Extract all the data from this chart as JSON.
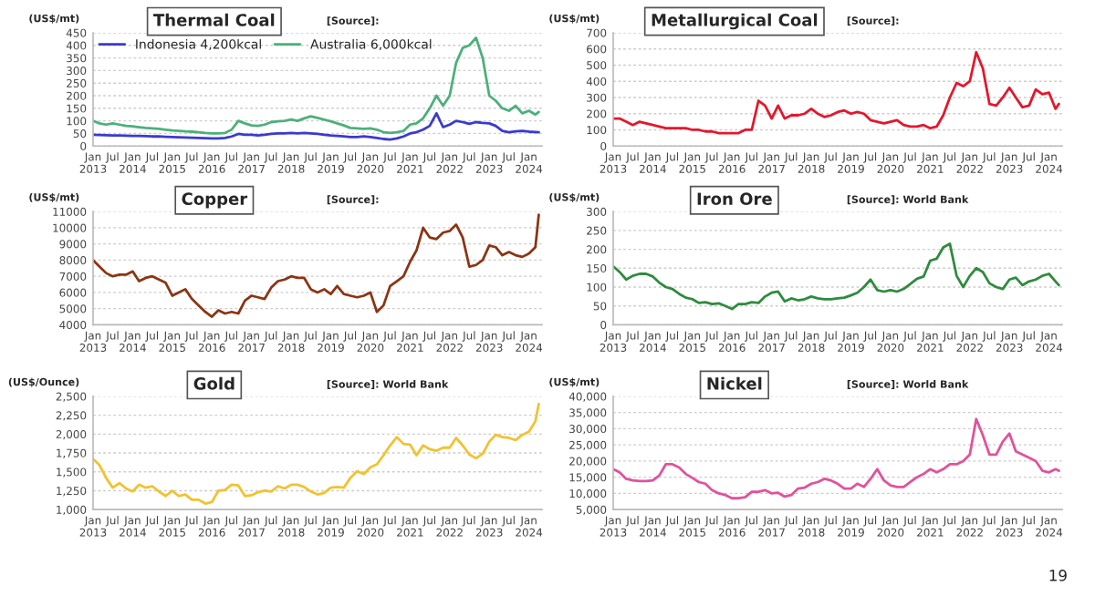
{
  "chart_data": [
    {
      "type": "line",
      "title": "Thermal Coal",
      "ylabel": "(US$/mt)",
      "annotations": [
        "[Source]:"
      ],
      "legend": "top left",
      "grid": "y",
      "line_style": "solid",
      "marker": "none",
      "x": [
        "2013-01",
        "2013-03",
        "2013-05",
        "2013-07",
        "2013-09",
        "2013-11",
        "2014-01",
        "2014-03",
        "2014-05",
        "2014-07",
        "2014-09",
        "2014-11",
        "2015-01",
        "2015-03",
        "2015-05",
        "2015-07",
        "2015-09",
        "2015-11",
        "2016-01",
        "2016-03",
        "2016-05",
        "2016-07",
        "2016-09",
        "2016-11",
        "2017-01",
        "2017-03",
        "2017-05",
        "2017-07",
        "2017-09",
        "2017-11",
        "2018-01",
        "2018-03",
        "2018-05",
        "2018-07",
        "2018-09",
        "2018-11",
        "2019-01",
        "2019-03",
        "2019-05",
        "2019-07",
        "2019-09",
        "2019-11",
        "2020-01",
        "2020-03",
        "2020-05",
        "2020-07",
        "2020-09",
        "2020-11",
        "2021-01",
        "2021-03",
        "2021-05",
        "2021-07",
        "2021-09",
        "2021-11",
        "2022-01",
        "2022-03",
        "2022-05",
        "2022-07",
        "2022-09",
        "2022-11",
        "2023-01",
        "2023-03",
        "2023-05",
        "2023-07",
        "2023-09",
        "2023-11",
        "2024-01",
        "2024-03",
        "2024-04"
      ],
      "series": [
        {
          "name": "Indonesia 4,200kcal",
          "color": "#3a3ad0",
          "values": [
            45,
            44,
            43,
            42,
            42,
            41,
            40,
            40,
            39,
            38,
            38,
            37,
            36,
            35,
            34,
            33,
            32,
            31,
            30,
            30,
            32,
            38,
            48,
            45,
            45,
            42,
            45,
            48,
            50,
            50,
            52,
            50,
            52,
            50,
            48,
            45,
            42,
            40,
            38,
            36,
            36,
            38,
            36,
            32,
            28,
            26,
            30,
            38,
            50,
            55,
            65,
            80,
            130,
            75,
            85,
            100,
            95,
            88,
            95,
            92,
            90,
            80,
            60,
            55,
            58,
            60,
            57,
            56,
            55
          ]
        },
        {
          "name": "Australia 6,000kcal",
          "color": "#4cb07a",
          "values": [
            100,
            90,
            85,
            90,
            85,
            80,
            78,
            75,
            72,
            70,
            68,
            65,
            62,
            60,
            58,
            57,
            55,
            52,
            50,
            50,
            52,
            65,
            100,
            90,
            82,
            80,
            85,
            95,
            98,
            100,
            105,
            100,
            110,
            118,
            112,
            105,
            98,
            90,
            82,
            72,
            70,
            68,
            70,
            65,
            55,
            52,
            55,
            60,
            85,
            90,
            110,
            150,
            200,
            160,
            200,
            330,
            390,
            400,
            430,
            350,
            200,
            180,
            150,
            140,
            160,
            130,
            140,
            125,
            135
          ]
        }
      ],
      "xlim": [
        "2013-01",
        "2024-05"
      ],
      "ylim": [
        0,
        450
      ],
      "yticks": [
        0,
        50,
        100,
        150,
        200,
        250,
        300,
        350,
        400,
        450
      ],
      "xticks": [
        {
          "value": "2013-01",
          "label": "Jan\n2013"
        },
        {
          "value": "2013-07",
          "label": "Jul"
        },
        {
          "value": "2014-01",
          "label": "Jan\n2014"
        },
        {
          "value": "2014-07",
          "label": "Jul"
        },
        {
          "value": "2015-01",
          "label": "Jan\n2015"
        },
        {
          "value": "2015-07",
          "label": "Jul"
        },
        {
          "value": "2016-01",
          "label": "Jan\n2016"
        },
        {
          "value": "2016-07",
          "label": "Jul"
        },
        {
          "value": "2017-01",
          "label": "Jan\n2017"
        },
        {
          "value": "2017-07",
          "label": "Jul"
        },
        {
          "value": "2018-01",
          "label": "Jan\n2018"
        },
        {
          "value": "2018-07",
          "label": "Jul"
        },
        {
          "value": "2019-01",
          "label": "Jan\n2019"
        },
        {
          "value": "2019-07",
          "label": "Jul"
        },
        {
          "value": "2020-01",
          "label": "Jan\n2020"
        },
        {
          "value": "2020-07",
          "label": "Jul"
        },
        {
          "value": "2021-01",
          "label": "Jan\n2021"
        },
        {
          "value": "2021-07",
          "label": "Jul"
        },
        {
          "value": "2022-01",
          "label": "Jan\n2022"
        },
        {
          "value": "2022-07",
          "label": "Jul"
        },
        {
          "value": "2023-01",
          "label": "Jan\n2023"
        },
        {
          "value": "2023-07",
          "label": "Jul"
        },
        {
          "value": "2024-01",
          "label": "Jan\n2024"
        }
      ]
    },
    {
      "type": "line",
      "title": "Metallurgical Coal",
      "ylabel": "(US$/mt)",
      "annotations": [
        "[Source]:"
      ],
      "grid": "y",
      "line_style": "solid",
      "marker": "none",
      "x": [
        "2013-01",
        "2013-03",
        "2013-05",
        "2013-07",
        "2013-09",
        "2013-11",
        "2014-01",
        "2014-03",
        "2014-05",
        "2014-07",
        "2014-09",
        "2014-11",
        "2015-01",
        "2015-03",
        "2015-05",
        "2015-07",
        "2015-09",
        "2015-11",
        "2016-01",
        "2016-03",
        "2016-05",
        "2016-07",
        "2016-09",
        "2016-11",
        "2017-01",
        "2017-03",
        "2017-05",
        "2017-07",
        "2017-09",
        "2017-11",
        "2018-01",
        "2018-03",
        "2018-05",
        "2018-07",
        "2018-09",
        "2018-11",
        "2019-01",
        "2019-03",
        "2019-05",
        "2019-07",
        "2019-09",
        "2019-11",
        "2020-01",
        "2020-03",
        "2020-05",
        "2020-07",
        "2020-09",
        "2020-11",
        "2021-01",
        "2021-03",
        "2021-05",
        "2021-07",
        "2021-09",
        "2021-11",
        "2022-01",
        "2022-03",
        "2022-05",
        "2022-07",
        "2022-09",
        "2022-11",
        "2023-01",
        "2023-03",
        "2023-05",
        "2023-07",
        "2023-09",
        "2023-11",
        "2024-01",
        "2024-03",
        "2024-04"
      ],
      "series": [
        {
          "color": "#e3172d",
          "values": [
            170,
            170,
            150,
            130,
            150,
            140,
            130,
            120,
            110,
            110,
            110,
            110,
            100,
            100,
            90,
            90,
            80,
            80,
            80,
            80,
            100,
            100,
            280,
            250,
            170,
            250,
            170,
            190,
            190,
            200,
            230,
            200,
            180,
            190,
            210,
            220,
            200,
            210,
            200,
            160,
            150,
            140,
            150,
            160,
            130,
            120,
            120,
            130,
            110,
            120,
            190,
            300,
            390,
            370,
            400,
            580,
            480,
            260,
            250,
            300,
            360,
            300,
            240,
            250,
            350,
            320,
            330,
            230,
            260
          ]
        }
      ],
      "xlim": [
        "2013-01",
        "2024-05"
      ],
      "ylim": [
        0,
        700
      ],
      "yticks": [
        0,
        100,
        200,
        300,
        400,
        500,
        600,
        700
      ],
      "xticks": [
        {
          "value": "2013-01",
          "label": "Jan\n2013"
        },
        {
          "value": "2013-07",
          "label": "Jul"
        },
        {
          "value": "2014-01",
          "label": "Jan\n2014"
        },
        {
          "value": "2014-07",
          "label": "Jul"
        },
        {
          "value": "2015-01",
          "label": "Jan\n2015"
        },
        {
          "value": "2015-07",
          "label": "Jul"
        },
        {
          "value": "2016-01",
          "label": "Jan\n2016"
        },
        {
          "value": "2016-07",
          "label": "Jul"
        },
        {
          "value": "2017-01",
          "label": "Jan\n2017"
        },
        {
          "value": "2017-07",
          "label": "Jul"
        },
        {
          "value": "2018-01",
          "label": "Jan\n2018"
        },
        {
          "value": "2018-07",
          "label": "Jul"
        },
        {
          "value": "2019-01",
          "label": "Jan\n2019"
        },
        {
          "value": "2019-07",
          "label": "Jul"
        },
        {
          "value": "2020-01",
          "label": "Jan\n2020"
        },
        {
          "value": "2020-07",
          "label": "Jul"
        },
        {
          "value": "2021-01",
          "label": "Jan\n2021"
        },
        {
          "value": "2021-07",
          "label": "Jul"
        },
        {
          "value": "2022-01",
          "label": "Jan\n2022"
        },
        {
          "value": "2022-07",
          "label": "Jul"
        },
        {
          "value": "2023-01",
          "label": "Jan\n2023"
        },
        {
          "value": "2023-07",
          "label": "Jul"
        },
        {
          "value": "2024-01",
          "label": "Jan\n2024"
        }
      ]
    },
    {
      "type": "line",
      "title": "Copper",
      "ylabel": "(US$/mt)",
      "annotations": [
        "[Source]:"
      ],
      "grid": "y",
      "line_style": "solid",
      "marker": "none",
      "x": [
        "2013-01",
        "2013-03",
        "2013-05",
        "2013-07",
        "2013-09",
        "2013-11",
        "2014-01",
        "2014-03",
        "2014-05",
        "2014-07",
        "2014-09",
        "2014-11",
        "2015-01",
        "2015-03",
        "2015-05",
        "2015-07",
        "2015-09",
        "2015-11",
        "2016-01",
        "2016-03",
        "2016-05",
        "2016-07",
        "2016-09",
        "2016-11",
        "2017-01",
        "2017-03",
        "2017-05",
        "2017-07",
        "2017-09",
        "2017-11",
        "2018-01",
        "2018-03",
        "2018-05",
        "2018-07",
        "2018-09",
        "2018-11",
        "2019-01",
        "2019-03",
        "2019-05",
        "2019-07",
        "2019-09",
        "2019-11",
        "2020-01",
        "2020-03",
        "2020-05",
        "2020-07",
        "2020-09",
        "2020-11",
        "2021-01",
        "2021-03",
        "2021-05",
        "2021-07",
        "2021-09",
        "2021-11",
        "2022-01",
        "2022-03",
        "2022-05",
        "2022-07",
        "2022-09",
        "2022-11",
        "2023-01",
        "2023-03",
        "2023-05",
        "2023-07",
        "2023-09",
        "2023-11",
        "2024-01",
        "2024-03",
        "2024-04"
      ],
      "series": [
        {
          "color": "#8b3514",
          "values": [
            8000,
            7600,
            7200,
            7000,
            7100,
            7100,
            7300,
            6700,
            6900,
            7000,
            6800,
            6600,
            5800,
            6000,
            6200,
            5600,
            5200,
            4800,
            4500,
            4900,
            4700,
            4800,
            4700,
            5500,
            5800,
            5700,
            5600,
            6300,
            6700,
            6800,
            7000,
            6900,
            6900,
            6200,
            6000,
            6200,
            5900,
            6400,
            5900,
            5800,
            5700,
            5800,
            6000,
            4800,
            5200,
            6400,
            6700,
            7000,
            7900,
            8600,
            10000,
            9400,
            9300,
            9700,
            9800,
            10200,
            9400,
            7600,
            7700,
            8000,
            8900,
            8800,
            8300,
            8500,
            8300,
            8200,
            8400,
            8800,
            10800
          ]
        }
      ],
      "xlim": [
        "2013-01",
        "2024-05"
      ],
      "ylim": [
        4000,
        11000
      ],
      "yticks": [
        4000,
        5000,
        6000,
        7000,
        8000,
        9000,
        10000,
        11000
      ],
      "xticks": [
        {
          "value": "2013-01",
          "label": "Jan\n2013"
        },
        {
          "value": "2013-07",
          "label": "Jul"
        },
        {
          "value": "2014-01",
          "label": "Jan\n2014"
        },
        {
          "value": "2014-07",
          "label": "Jul"
        },
        {
          "value": "2015-01",
          "label": "Jan\n2015"
        },
        {
          "value": "2015-07",
          "label": "Jul"
        },
        {
          "value": "2016-01",
          "label": "Jan\n2016"
        },
        {
          "value": "2016-07",
          "label": "Jul"
        },
        {
          "value": "2017-01",
          "label": "Jan\n2017"
        },
        {
          "value": "2017-07",
          "label": "Jul"
        },
        {
          "value": "2018-01",
          "label": "Jan\n2018"
        },
        {
          "value": "2018-07",
          "label": "Jul"
        },
        {
          "value": "2019-01",
          "label": "Jan\n2019"
        },
        {
          "value": "2019-07",
          "label": "Jul"
        },
        {
          "value": "2020-01",
          "label": "Jan\n2020"
        },
        {
          "value": "2020-07",
          "label": "Jul"
        },
        {
          "value": "2021-01",
          "label": "Jan\n2021"
        },
        {
          "value": "2021-07",
          "label": "Jul"
        },
        {
          "value": "2022-01",
          "label": "Jan\n2022"
        },
        {
          "value": "2022-07",
          "label": "Jul"
        },
        {
          "value": "2023-01",
          "label": "Jan\n2023"
        },
        {
          "value": "2023-07",
          "label": "Jul"
        },
        {
          "value": "2024-01",
          "label": "Jan\n2024"
        }
      ]
    },
    {
      "type": "line",
      "title": "Iron Ore",
      "ylabel": "(US$/mt)",
      "annotations": [
        "[Source]: World Bank"
      ],
      "grid": "y",
      "line_style": "solid",
      "marker": "none",
      "x": [
        "2013-01",
        "2013-03",
        "2013-05",
        "2013-07",
        "2013-09",
        "2013-11",
        "2014-01",
        "2014-03",
        "2014-05",
        "2014-07",
        "2014-09",
        "2014-11",
        "2015-01",
        "2015-03",
        "2015-05",
        "2015-07",
        "2015-09",
        "2015-11",
        "2016-01",
        "2016-03",
        "2016-05",
        "2016-07",
        "2016-09",
        "2016-11",
        "2017-01",
        "2017-03",
        "2017-05",
        "2017-07",
        "2017-09",
        "2017-11",
        "2018-01",
        "2018-03",
        "2018-05",
        "2018-07",
        "2018-09",
        "2018-11",
        "2019-01",
        "2019-03",
        "2019-05",
        "2019-07",
        "2019-09",
        "2019-11",
        "2020-01",
        "2020-03",
        "2020-05",
        "2020-07",
        "2020-09",
        "2020-11",
        "2021-01",
        "2021-03",
        "2021-05",
        "2021-07",
        "2021-09",
        "2021-11",
        "2022-01",
        "2022-03",
        "2022-05",
        "2022-07",
        "2022-09",
        "2022-11",
        "2023-01",
        "2023-03",
        "2023-05",
        "2023-07",
        "2023-09",
        "2023-11",
        "2024-01",
        "2024-03",
        "2024-04"
      ],
      "series": [
        {
          "color": "#2e8b3e",
          "values": [
            155,
            140,
            120,
            130,
            135,
            135,
            128,
            112,
            100,
            95,
            82,
            72,
            68,
            58,
            60,
            55,
            57,
            50,
            42,
            55,
            55,
            60,
            58,
            75,
            85,
            88,
            62,
            70,
            65,
            68,
            75,
            70,
            68,
            68,
            70,
            72,
            78,
            85,
            100,
            120,
            92,
            88,
            92,
            88,
            95,
            108,
            122,
            128,
            170,
            175,
            205,
            215,
            130,
            100,
            130,
            150,
            140,
            110,
            100,
            95,
            120,
            125,
            105,
            115,
            120,
            130,
            135,
            115,
            105
          ]
        }
      ],
      "xlim": [
        "2013-01",
        "2024-05"
      ],
      "ylim": [
        0,
        300
      ],
      "yticks": [
        0,
        50,
        100,
        150,
        200,
        250,
        300
      ],
      "xticks": [
        {
          "value": "2013-01",
          "label": "Jan\n2013"
        },
        {
          "value": "2013-07",
          "label": "Jul"
        },
        {
          "value": "2014-01",
          "label": "Jan\n2014"
        },
        {
          "value": "2014-07",
          "label": "Jul"
        },
        {
          "value": "2015-01",
          "label": "Jan\n2015"
        },
        {
          "value": "2015-07",
          "label": "Jul"
        },
        {
          "value": "2016-01",
          "label": "Jan\n2016"
        },
        {
          "value": "2016-07",
          "label": "Jul"
        },
        {
          "value": "2017-01",
          "label": "Jan\n2017"
        },
        {
          "value": "2017-07",
          "label": "Jul"
        },
        {
          "value": "2018-01",
          "label": "Jan\n2018"
        },
        {
          "value": "2018-07",
          "label": "Jul"
        },
        {
          "value": "2019-01",
          "label": "Jan\n2019"
        },
        {
          "value": "2019-07",
          "label": "Jul"
        },
        {
          "value": "2020-01",
          "label": "Jan\n2020"
        },
        {
          "value": "2020-07",
          "label": "Jul"
        },
        {
          "value": "2021-01",
          "label": "Jan\n2021"
        },
        {
          "value": "2021-07",
          "label": "Jul"
        },
        {
          "value": "2022-01",
          "label": "Jan\n2022"
        },
        {
          "value": "2022-07",
          "label": "Jul"
        },
        {
          "value": "2023-01",
          "label": "Jan\n2023"
        },
        {
          "value": "2023-07",
          "label": "Jul"
        },
        {
          "value": "2024-01",
          "label": "Jan\n2024"
        }
      ]
    },
    {
      "type": "line",
      "title": "Gold",
      "ylabel": "(US$/Ounce)",
      "annotations": [
        "[Source]: World Bank"
      ],
      "grid": "y",
      "line_style": "solid",
      "marker": "none",
      "x": [
        "2013-01",
        "2013-03",
        "2013-05",
        "2013-07",
        "2013-09",
        "2013-11",
        "2014-01",
        "2014-03",
        "2014-05",
        "2014-07",
        "2014-09",
        "2014-11",
        "2015-01",
        "2015-03",
        "2015-05",
        "2015-07",
        "2015-09",
        "2015-11",
        "2016-01",
        "2016-03",
        "2016-05",
        "2016-07",
        "2016-09",
        "2016-11",
        "2017-01",
        "2017-03",
        "2017-05",
        "2017-07",
        "2017-09",
        "2017-11",
        "2018-01",
        "2018-03",
        "2018-05",
        "2018-07",
        "2018-09",
        "2018-11",
        "2019-01",
        "2019-03",
        "2019-05",
        "2019-07",
        "2019-09",
        "2019-11",
        "2020-01",
        "2020-03",
        "2020-05",
        "2020-07",
        "2020-09",
        "2020-11",
        "2021-01",
        "2021-03",
        "2021-05",
        "2021-07",
        "2021-09",
        "2021-11",
        "2022-01",
        "2022-03",
        "2022-05",
        "2022-07",
        "2022-09",
        "2022-11",
        "2023-01",
        "2023-03",
        "2023-05",
        "2023-07",
        "2023-09",
        "2023-11",
        "2024-01",
        "2024-03",
        "2024-04"
      ],
      "series": [
        {
          "color": "#f2c230",
          "values": [
            1670,
            1590,
            1420,
            1290,
            1350,
            1280,
            1240,
            1330,
            1290,
            1310,
            1240,
            1180,
            1250,
            1180,
            1200,
            1130,
            1130,
            1080,
            1100,
            1250,
            1260,
            1330,
            1320,
            1180,
            1190,
            1230,
            1250,
            1240,
            1310,
            1280,
            1330,
            1330,
            1300,
            1240,
            1200,
            1220,
            1290,
            1300,
            1290,
            1420,
            1510,
            1470,
            1560,
            1600,
            1720,
            1850,
            1960,
            1870,
            1860,
            1720,
            1850,
            1800,
            1780,
            1820,
            1820,
            1950,
            1850,
            1730,
            1680,
            1740,
            1900,
            1990,
            1960,
            1950,
            1920,
            1990,
            2030,
            2170,
            2400
          ]
        }
      ],
      "xlim": [
        "2013-01",
        "2024-05"
      ],
      "ylim": [
        1000,
        2500
      ],
      "yticks": [
        {
          "value": 1000,
          "label": "1,000"
        },
        {
          "value": 1250,
          "label": "1,250"
        },
        {
          "value": 1500,
          "label": "1,500"
        },
        {
          "value": 1750,
          "label": "1,750"
        },
        {
          "value": 2000,
          "label": "2,000"
        },
        {
          "value": 2250,
          "label": "2,250"
        },
        {
          "value": 2500,
          "label": "2,500"
        }
      ],
      "xticks": [
        {
          "value": "2013-01",
          "label": "Jan\n2013"
        },
        {
          "value": "2013-07",
          "label": "Jul"
        },
        {
          "value": "2014-01",
          "label": "Jan\n2014"
        },
        {
          "value": "2014-07",
          "label": "Jul"
        },
        {
          "value": "2015-01",
          "label": "Jan\n2015"
        },
        {
          "value": "2015-07",
          "label": "Jul"
        },
        {
          "value": "2016-01",
          "label": "Jan\n2016"
        },
        {
          "value": "2016-07",
          "label": "Jul"
        },
        {
          "value": "2017-01",
          "label": "Jan\n2017"
        },
        {
          "value": "2017-07",
          "label": "Jul"
        },
        {
          "value": "2018-01",
          "label": "Jan\n2018"
        },
        {
          "value": "2018-07",
          "label": "Jul"
        },
        {
          "value": "2019-01",
          "label": "Jan\n2019"
        },
        {
          "value": "2019-07",
          "label": "Jul"
        },
        {
          "value": "2020-01",
          "label": "Jan\n2020"
        },
        {
          "value": "2020-07",
          "label": "Jul"
        },
        {
          "value": "2021-01",
          "label": "Jan\n2021"
        },
        {
          "value": "2021-07",
          "label": "Jul"
        },
        {
          "value": "2022-01",
          "label": "Jan\n2022"
        },
        {
          "value": "2022-07",
          "label": "Jul"
        },
        {
          "value": "2023-01",
          "label": "Jan\n2023"
        },
        {
          "value": "2023-07",
          "label": "Jul"
        },
        {
          "value": "2024-01",
          "label": "Jan\n2024"
        }
      ]
    },
    {
      "type": "line",
      "title": "Nickel",
      "ylabel": "(US$/mt)",
      "annotations": [
        "[Source]: World Bank",
        "19"
      ],
      "grid": "y",
      "line_style": "solid",
      "marker": "none",
      "x": [
        "2013-01",
        "2013-03",
        "2013-05",
        "2013-07",
        "2013-09",
        "2013-11",
        "2014-01",
        "2014-03",
        "2014-05",
        "2014-07",
        "2014-09",
        "2014-11",
        "2015-01",
        "2015-03",
        "2015-05",
        "2015-07",
        "2015-09",
        "2015-11",
        "2016-01",
        "2016-03",
        "2016-05",
        "2016-07",
        "2016-09",
        "2016-11",
        "2017-01",
        "2017-03",
        "2017-05",
        "2017-07",
        "2017-09",
        "2017-11",
        "2018-01",
        "2018-03",
        "2018-05",
        "2018-07",
        "2018-09",
        "2018-11",
        "2019-01",
        "2019-03",
        "2019-05",
        "2019-07",
        "2019-09",
        "2019-11",
        "2020-01",
        "2020-03",
        "2020-05",
        "2020-07",
        "2020-09",
        "2020-11",
        "2021-01",
        "2021-03",
        "2021-05",
        "2021-07",
        "2021-09",
        "2021-11",
        "2022-01",
        "2022-03",
        "2022-05",
        "2022-07",
        "2022-09",
        "2022-11",
        "2023-01",
        "2023-03",
        "2023-05",
        "2023-07",
        "2023-09",
        "2023-11",
        "2024-01",
        "2024-03",
        "2024-04"
      ],
      "series": [
        {
          "color": "#e0529c",
          "values": [
            17500,
            16500,
            14500,
            14000,
            13800,
            13800,
            14000,
            15500,
            19000,
            19000,
            18000,
            16000,
            14800,
            13500,
            13000,
            11000,
            10000,
            9500,
            8500,
            8500,
            8800,
            10500,
            10500,
            11000,
            10000,
            10200,
            9000,
            9500,
            11500,
            11800,
            13000,
            13500,
            14500,
            14000,
            13000,
            11500,
            11500,
            13000,
            12000,
            14500,
            17500,
            14000,
            12500,
            12000,
            12000,
            13500,
            15000,
            16000,
            17500,
            16500,
            17500,
            19000,
            19000,
            20000,
            22000,
            33000,
            28000,
            22000,
            22000,
            26000,
            28500,
            23000,
            22000,
            21000,
            20000,
            17000,
            16500,
            17500,
            17000
          ]
        }
      ],
      "xlim": [
        "2013-01",
        "2024-05"
      ],
      "ylim": [
        5000,
        40000
      ],
      "yticks": [
        {
          "value": 5000,
          "label": "5,000"
        },
        {
          "value": 10000,
          "label": "10,000"
        },
        {
          "value": 15000,
          "label": "15,000"
        },
        {
          "value": 20000,
          "label": "20,000"
        },
        {
          "value": 25000,
          "label": "25,000"
        },
        {
          "value": 30000,
          "label": "30,000"
        },
        {
          "value": 35000,
          "label": "35,000"
        },
        {
          "value": 40000,
          "label": "40,000"
        }
      ],
      "xticks": [
        {
          "value": "2013-01",
          "label": "Jan\n2013"
        },
        {
          "value": "2013-07",
          "label": "Jul"
        },
        {
          "value": "2014-01",
          "label": "Jan\n2014"
        },
        {
          "value": "2014-07",
          "label": "Jul"
        },
        {
          "value": "2015-01",
          "label": "Jan\n2015"
        },
        {
          "value": "2015-07",
          "label": "Jul"
        },
        {
          "value": "2016-01",
          "label": "Jan\n2016"
        },
        {
          "value": "2016-07",
          "label": "Jul"
        },
        {
          "value": "2017-01",
          "label": "Jan\n2017"
        },
        {
          "value": "2017-07",
          "label": "Jul"
        },
        {
          "value": "2018-01",
          "label": "Jan\n2018"
        },
        {
          "value": "2018-07",
          "label": "Jul"
        },
        {
          "value": "2019-01",
          "label": "Jan\n2019"
        },
        {
          "value": "2019-07",
          "label": "Jul"
        },
        {
          "value": "2020-01",
          "label": "Jan\n2020"
        },
        {
          "value": "2020-07",
          "label": "Jul"
        },
        {
          "value": "2021-01",
          "label": "Jan\n2021"
        },
        {
          "value": "2021-07",
          "label": "Jul"
        },
        {
          "value": "2022-01",
          "label": "Jan\n2022"
        },
        {
          "value": "2022-07",
          "label": "Jul"
        },
        {
          "value": "2023-01",
          "label": "Jan\n2023"
        },
        {
          "value": "2023-07",
          "label": "Jul"
        },
        {
          "value": "2024-01",
          "label": "Jan\n2024"
        }
      ]
    }
  ]
}
